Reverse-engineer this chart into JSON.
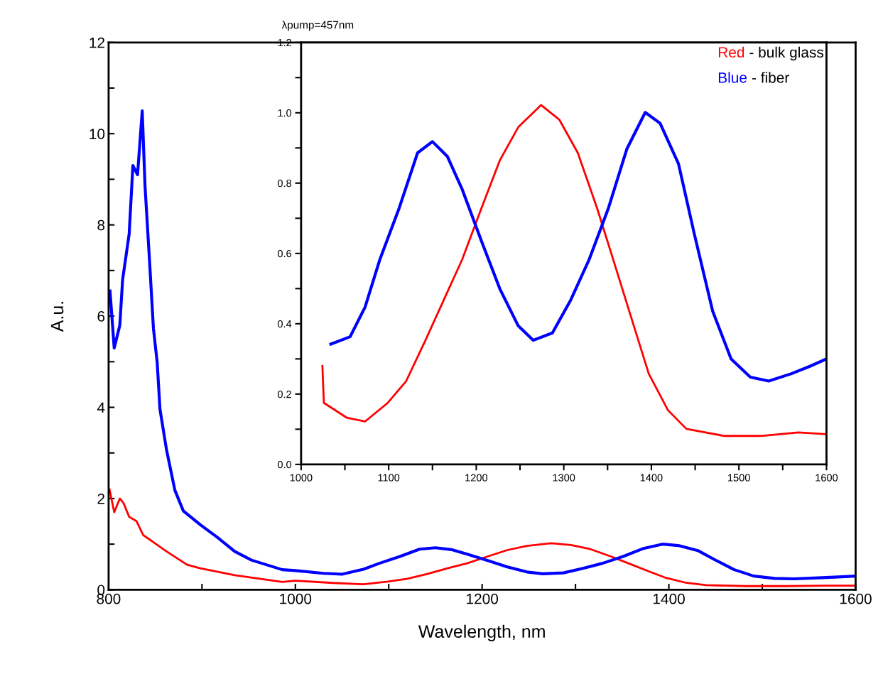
{
  "chart_data": [
    {
      "type": "line",
      "title": "λpump=457nm",
      "xlabel": "Wavelength, nm",
      "ylabel": "A.u.",
      "xlim": [
        800,
        1600
      ],
      "ylim": [
        0,
        12
      ],
      "xticks": [
        800,
        {
          "value": 900,
          "label": null
        },
        1000,
        {
          "value": 1100,
          "label": null
        },
        1200,
        {
          "value": 1300,
          "label": null
        },
        1400,
        {
          "value": 1500,
          "label": null
        },
        1600
      ],
      "yticks": [
        0,
        {
          "value": 1,
          "label": null
        },
        2,
        {
          "value": 3,
          "label": null
        },
        4,
        {
          "value": 5,
          "label": null
        },
        6,
        {
          "value": 7,
          "label": null
        },
        8,
        {
          "value": 9,
          "label": null
        },
        10,
        {
          "value": 11,
          "label": null
        },
        12
      ],
      "grid": false,
      "series": [
        {
          "color": "#ff0000",
          "x": [
            801,
            806,
            812,
            816,
            822,
            830,
            837,
            844,
            862,
            884,
            898,
            935,
            986,
            1000,
            1040,
            1073,
            1099,
            1120,
            1142,
            1163,
            1184,
            1206,
            1227,
            1248,
            1274,
            1295,
            1316,
            1338,
            1359,
            1380,
            1397,
            1419,
            1440,
            1483,
            1525,
            1568,
            1600
          ],
          "values": [
            2.2,
            1.7,
            2.0,
            1.9,
            1.6,
            1.5,
            1.2,
            1.1,
            0.84,
            0.55,
            0.47,
            0.32,
            0.17,
            0.2,
            0.15,
            0.12,
            0.18,
            0.24,
            0.35,
            0.47,
            0.58,
            0.73,
            0.87,
            0.96,
            1.02,
            0.98,
            0.89,
            0.73,
            0.56,
            0.39,
            0.26,
            0.15,
            0.1,
            0.08,
            0.08,
            0.09,
            0.09
          ]
        },
        {
          "color": "#0000ff",
          "x": [
            801.5,
            806,
            812,
            815,
            822,
            826,
            831,
            836,
            839,
            844,
            848,
            852,
            855,
            862,
            871,
            880,
            898,
            917,
            935,
            953,
            986,
            1000,
            1030,
            1050,
            1073,
            1090,
            1112,
            1133,
            1150,
            1167,
            1184,
            1206,
            1227,
            1248,
            1265,
            1287,
            1308,
            1329,
            1351,
            1372,
            1393,
            1410,
            1431,
            1449,
            1470,
            1491,
            1513,
            1534,
            1560,
            1581,
            1600
          ],
          "values": [
            6.55,
            5.3,
            5.8,
            6.8,
            7.8,
            9.3,
            9.1,
            10.5,
            8.85,
            7.15,
            5.73,
            4.99,
            3.96,
            3.07,
            2.18,
            1.73,
            1.43,
            1.14,
            0.84,
            0.65,
            0.44,
            0.42,
            0.36,
            0.34,
            0.45,
            0.58,
            0.73,
            0.89,
            0.92,
            0.88,
            0.78,
            0.64,
            0.5,
            0.39,
            0.35,
            0.37,
            0.47,
            0.58,
            0.73,
            0.9,
            1.0,
            0.97,
            0.86,
            0.66,
            0.44,
            0.3,
            0.25,
            0.24,
            0.26,
            0.28,
            0.3
          ]
        }
      ]
    },
    {
      "type": "line",
      "xlim": [
        1000,
        1600
      ],
      "ylim": [
        0,
        1.2
      ],
      "xticks": [
        1000,
        {
          "value": 1050,
          "label": null
        },
        1100,
        {
          "value": 1150,
          "label": null
        },
        1200,
        {
          "value": 1250,
          "label": null
        },
        1300,
        {
          "value": 1350,
          "label": null
        },
        1400,
        {
          "value": 1450,
          "label": null
        },
        1500,
        {
          "value": 1550,
          "label": null
        },
        1600
      ],
      "yticks": [
        {
          "value": 0,
          "label": "0.0"
        },
        {
          "value": 0.1,
          "label": null
        },
        {
          "value": 0.2,
          "label": "0.2"
        },
        {
          "value": 0.3,
          "label": null
        },
        {
          "value": 0.4,
          "label": "0.4"
        },
        {
          "value": 0.5,
          "label": null
        },
        {
          "value": 0.6,
          "label": "0.6"
        },
        {
          "value": 0.7,
          "label": null
        },
        {
          "value": 0.8,
          "label": "0.8"
        },
        {
          "value": 0.9,
          "label": null
        },
        {
          "value": 1.0,
          "label": "1.0"
        },
        {
          "value": 1.1,
          "label": null
        },
        {
          "value": 1.2,
          "label": "1.2"
        }
      ],
      "grid": false,
      "series": [
        {
          "name": "Red - bulk glass",
          "color": "#ff0000",
          "x": [
            1024.3,
            1026,
            1052,
            1073,
            1099,
            1120,
            1142,
            1163,
            1184,
            1206,
            1227,
            1248,
            1274,
            1295,
            1316,
            1338,
            1359,
            1380,
            1397,
            1419,
            1440,
            1483,
            1525,
            1568,
            1600
          ],
          "values": [
            0.28,
            0.175,
            0.133,
            0.122,
            0.175,
            0.237,
            0.353,
            0.468,
            0.583,
            0.729,
            0.865,
            0.959,
            1.022,
            0.98,
            0.886,
            0.729,
            0.562,
            0.394,
            0.258,
            0.154,
            0.101,
            0.081,
            0.081,
            0.091,
            0.086
          ]
        },
        {
          "name": "Blue - fiber",
          "color": "#0000ff",
          "x": [
            1034,
            1056,
            1073,
            1090,
            1112,
            1133,
            1150,
            1167,
            1184,
            1206,
            1227,
            1248,
            1265,
            1287,
            1308,
            1329,
            1351,
            1372,
            1393,
            1410,
            1431,
            1449,
            1470,
            1491,
            1513,
            1534,
            1560,
            1581,
            1600
          ],
          "values": [
            0.342,
            0.363,
            0.447,
            0.583,
            0.729,
            0.886,
            0.918,
            0.876,
            0.782,
            0.635,
            0.499,
            0.394,
            0.353,
            0.374,
            0.468,
            0.583,
            0.729,
            0.897,
            1.001,
            0.97,
            0.855,
            0.656,
            0.436,
            0.3,
            0.248,
            0.237,
            0.258,
            0.279,
            0.3
          ]
        }
      ]
    }
  ]
}
